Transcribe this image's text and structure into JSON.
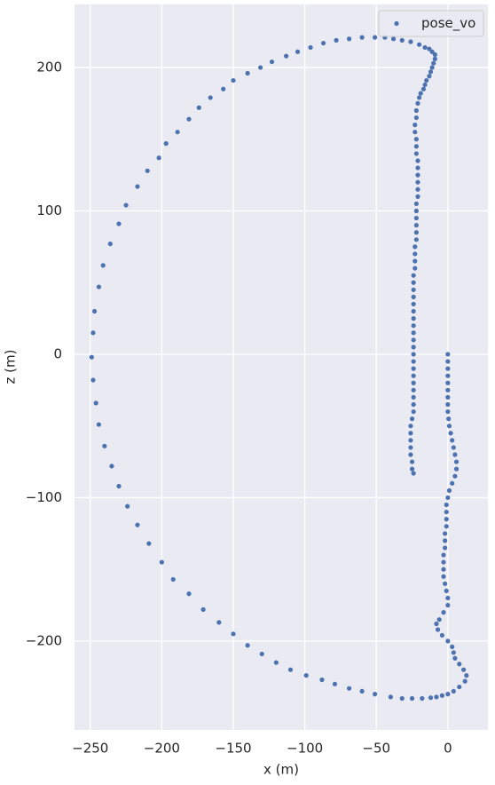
{
  "chart_data": {
    "type": "scatter",
    "xlabel": "x (m)",
    "ylabel": "z (m)",
    "x": [
      0,
      0,
      0,
      0,
      0,
      0,
      0,
      0,
      0,
      0.5,
      1,
      2,
      3,
      4,
      5,
      6,
      6,
      5,
      3,
      1,
      0,
      -1,
      -1,
      -1,
      -1,
      -2,
      -2,
      -2,
      -3,
      -3,
      -3,
      -3,
      -2,
      -1,
      0,
      0,
      -3,
      -6,
      -8,
      -7,
      -4,
      0,
      3,
      4,
      5,
      8,
      11,
      13,
      12,
      8,
      4,
      0,
      -4,
      -8,
      -12,
      -18,
      -25,
      -32,
      -40,
      -51,
      -60,
      -69,
      -79,
      -88,
      -99,
      -110,
      -120,
      -130,
      -140,
      -150,
      -160,
      -171,
      -181,
      -192,
      -200,
      -209,
      -217,
      -224,
      -230,
      -235,
      -240,
      -244,
      -246,
      -248,
      -249,
      -248,
      -247,
      -244,
      -241,
      -236,
      -230,
      -225,
      -217,
      -210,
      -202,
      -197,
      -189,
      -181,
      -174,
      -166,
      -157,
      -150,
      -140,
      -131,
      -123,
      -113,
      -105,
      -96,
      -87,
      -78,
      -69,
      -60,
      -51,
      -44,
      -38,
      -32,
      -26,
      -20,
      -16,
      -13,
      -11,
      -9,
      -9,
      -10,
      -11,
      -12,
      -13,
      -15,
      -16,
      -17,
      -19,
      -20,
      -21,
      -22,
      -22,
      -23,
      -23,
      -22,
      -22,
      -22,
      -21,
      -21,
      -21,
      -21,
      -21,
      -21,
      -22,
      -22,
      -22,
      -22,
      -22,
      -22,
      -23,
      -23,
      -23,
      -23,
      -24,
      -24,
      -24,
      -24,
      -24,
      -24,
      -24,
      -24,
      -24,
      -24,
      -24,
      -24,
      -24,
      -24,
      -24,
      -24,
      -24,
      -24,
      -24,
      -24,
      -25,
      -26,
      -26,
      -26,
      -26,
      -26,
      -25,
      -25,
      -24
    ],
    "series": [
      {
        "name": "pose_vo",
        "color": "#4c72b0",
        "values": [
          0,
          -5,
          -10,
          -15,
          -20,
          -25,
          -30,
          -35,
          -40,
          -45,
          -50,
          -55,
          -60,
          -65,
          -70,
          -75,
          -80,
          -85,
          -90,
          -95,
          -100,
          -105,
          -110,
          -115,
          -120,
          -125,
          -130,
          -135,
          -140,
          -145,
          -150,
          -155,
          -160,
          -165,
          -170,
          -175,
          -180,
          -185,
          -188,
          -192,
          -196,
          -200,
          -204,
          -208,
          -212,
          -216,
          -220,
          -224,
          -228,
          -232,
          -235,
          -237,
          -238,
          -239,
          -239.5,
          -240,
          -240,
          -240,
          -239,
          -237,
          -235,
          -233,
          -230,
          -227,
          -224,
          -220,
          -215,
          -209,
          -203,
          -195,
          -187,
          -178,
          -167,
          -157,
          -145,
          -132,
          -119,
          -106,
          -92,
          -78,
          -64,
          -49,
          -34,
          -18,
          -2,
          15,
          30,
          47,
          62,
          77,
          91,
          104,
          117,
          128,
          137,
          147,
          155,
          164,
          172,
          179,
          185,
          191,
          196,
          200,
          204,
          208,
          211,
          214,
          217,
          219,
          220,
          221,
          221,
          221,
          220,
          219,
          218,
          216,
          214,
          213,
          211,
          209,
          206,
          203,
          200,
          197,
          194,
          191,
          188,
          185,
          182,
          179,
          175,
          170,
          165,
          160,
          155,
          150,
          145,
          140,
          135,
          130,
          125,
          120,
          115,
          110,
          105,
          100,
          95,
          90,
          85,
          80,
          75,
          70,
          65,
          60,
          55,
          50,
          45,
          40,
          35,
          30,
          25,
          20,
          15,
          10,
          5,
          0,
          -5,
          -10,
          -15,
          -20,
          -25,
          -30,
          -35,
          -40,
          -45,
          -50,
          -55,
          -60,
          -65,
          -70,
          -75,
          -80,
          -83
        ]
      }
    ],
    "xlim": [
      -261,
      28
    ],
    "ylim": [
      -262,
      244
    ],
    "xticks": [
      {
        "value": -250,
        "label": "−250"
      },
      {
        "value": -200,
        "label": "−200"
      },
      {
        "value": -150,
        "label": "−150"
      },
      {
        "value": -100,
        "label": "−100"
      },
      {
        "value": -50,
        "label": "−50"
      },
      0
    ],
    "yticks": [
      {
        "value": -200,
        "label": "−200"
      },
      {
        "value": -100,
        "label": "−100"
      },
      0,
      100,
      200
    ],
    "grid": true,
    "legend": "upper right"
  }
}
